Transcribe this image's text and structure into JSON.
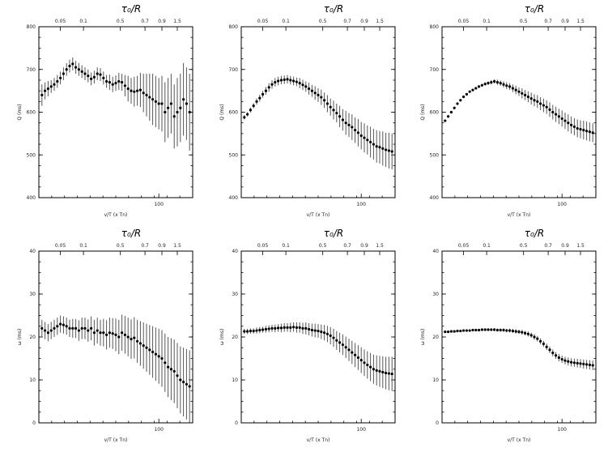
{
  "chart_data": [
    {
      "type": "scatter",
      "top_label": "τ₀/R",
      "top_ticks": [
        "0.05",
        "0.1",
        "0.5",
        "0.7",
        "0.9",
        "1.5"
      ],
      "xlabel": "v/T (x Tn)",
      "x_ticks": [
        "100"
      ],
      "ylabel": "Q (ms)",
      "ylim": [
        400,
        800
      ],
      "y_ticks": [
        "400",
        "500",
        "600",
        "700",
        "800"
      ],
      "grid": false,
      "series": [
        {
          "x": [
            0.02,
            0.04,
            0.06,
            0.08,
            0.1,
            0.12,
            0.14,
            0.16,
            0.18,
            0.2,
            0.22,
            0.24,
            0.26,
            0.28,
            0.3,
            0.32,
            0.34,
            0.36,
            0.38,
            0.4,
            0.42,
            0.44,
            0.46,
            0.48,
            0.5,
            0.52,
            0.54,
            0.56,
            0.58,
            0.6,
            0.62,
            0.64,
            0.66,
            0.68,
            0.7,
            0.72,
            0.74,
            0.76,
            0.78,
            0.8,
            0.82,
            0.84,
            0.86,
            0.88,
            0.9,
            0.92,
            0.94,
            0.96,
            0.98
          ],
          "y": [
            640,
            650,
            655,
            660,
            665,
            672,
            680,
            690,
            700,
            708,
            713,
            705,
            700,
            695,
            690,
            685,
            678,
            682,
            690,
            688,
            680,
            672,
            670,
            665,
            668,
            672,
            670,
            662,
            655,
            650,
            648,
            650,
            652,
            645,
            640,
            635,
            630,
            625,
            620,
            620,
            600,
            610,
            620,
            590,
            600,
            610,
            630,
            620,
            600
          ],
          "err": [
            25,
            20,
            18,
            15,
            15,
            15,
            15,
            15,
            15,
            15,
            15,
            15,
            15,
            15,
            15,
            15,
            15,
            15,
            15,
            15,
            15,
            15,
            18,
            18,
            18,
            20,
            20,
            25,
            30,
            30,
            35,
            35,
            40,
            45,
            50,
            55,
            60,
            60,
            60,
            65,
            70,
            70,
            70,
            75,
            80,
            80,
            85,
            85,
            90
          ]
        }
      ]
    },
    {
      "type": "scatter",
      "top_label": "τ₀/R",
      "top_ticks": [
        "0.05",
        "0.1",
        "0.5",
        "0.7",
        "0.9",
        "1.5"
      ],
      "xlabel": "v/T (x Tn)",
      "x_ticks": [
        "100"
      ],
      "ylabel": "Q (ms)",
      "ylim": [
        400,
        800
      ],
      "y_ticks": [
        "400",
        "500",
        "600",
        "700",
        "800"
      ],
      "grid": false,
      "series": [
        {
          "x": [
            0.02,
            0.04,
            0.06,
            0.08,
            0.1,
            0.12,
            0.14,
            0.16,
            0.18,
            0.2,
            0.22,
            0.24,
            0.26,
            0.28,
            0.3,
            0.32,
            0.34,
            0.36,
            0.38,
            0.4,
            0.42,
            0.44,
            0.46,
            0.48,
            0.5,
            0.52,
            0.54,
            0.56,
            0.58,
            0.6,
            0.62,
            0.64,
            0.66,
            0.68,
            0.7,
            0.72,
            0.74,
            0.76,
            0.78,
            0.8,
            0.82,
            0.84,
            0.86,
            0.88,
            0.9,
            0.92,
            0.94,
            0.96,
            0.98
          ],
          "y": [
            588,
            595,
            605,
            615,
            625,
            633,
            642,
            650,
            658,
            665,
            670,
            673,
            675,
            676,
            677,
            675,
            673,
            671,
            668,
            664,
            660,
            655,
            650,
            645,
            640,
            635,
            628,
            620,
            612,
            605,
            598,
            590,
            582,
            575,
            570,
            565,
            558,
            552,
            545,
            540,
            535,
            530,
            525,
            520,
            518,
            515,
            512,
            510,
            508
          ],
          "err": [
            5,
            5,
            6,
            6,
            7,
            8,
            8,
            9,
            10,
            10,
            10,
            10,
            10,
            10,
            10,
            10,
            10,
            10,
            12,
            12,
            12,
            14,
            14,
            16,
            16,
            18,
            18,
            20,
            20,
            22,
            22,
            25,
            25,
            28,
            28,
            30,
            30,
            32,
            32,
            34,
            34,
            36,
            36,
            38,
            38,
            40,
            40,
            42,
            42
          ]
        }
      ]
    },
    {
      "type": "scatter",
      "top_label": "τ₀/R",
      "top_ticks": [
        "0.05",
        "0.1",
        "0.5",
        "0.7",
        "0.9",
        "1.5"
      ],
      "xlabel": "v/T (x Tn)",
      "x_ticks": [
        "100"
      ],
      "ylabel": "Q (ms)",
      "ylim": [
        400,
        800
      ],
      "y_ticks": [
        "400",
        "500",
        "600",
        "700",
        "800"
      ],
      "grid": false,
      "series": [
        {
          "x": [
            0.02,
            0.04,
            0.06,
            0.08,
            0.1,
            0.12,
            0.14,
            0.16,
            0.18,
            0.2,
            0.22,
            0.24,
            0.26,
            0.28,
            0.3,
            0.32,
            0.34,
            0.36,
            0.38,
            0.4,
            0.42,
            0.44,
            0.46,
            0.48,
            0.5,
            0.52,
            0.54,
            0.56,
            0.58,
            0.6,
            0.62,
            0.64,
            0.66,
            0.68,
            0.7,
            0.72,
            0.74,
            0.76,
            0.78,
            0.8,
            0.82,
            0.84,
            0.86,
            0.88,
            0.9,
            0.92,
            0.94,
            0.96,
            0.98
          ],
          "y": [
            580,
            590,
            600,
            610,
            620,
            628,
            636,
            642,
            648,
            652,
            656,
            660,
            663,
            666,
            668,
            670,
            672,
            670,
            668,
            665,
            662,
            660,
            656,
            652,
            648,
            644,
            640,
            636,
            632,
            628,
            625,
            620,
            616,
            612,
            606,
            600,
            595,
            590,
            585,
            580,
            575,
            570,
            566,
            562,
            560,
            558,
            556,
            554,
            552
          ],
          "err": [
            1,
            1,
            1,
            2,
            2,
            2,
            2,
            2,
            2,
            3,
            3,
            3,
            3,
            4,
            4,
            5,
            5,
            6,
            6,
            7,
            8,
            8,
            9,
            10,
            10,
            12,
            12,
            13,
            14,
            14,
            15,
            15,
            16,
            16,
            17,
            17,
            18,
            18,
            19,
            19,
            20,
            20,
            20,
            21,
            21,
            22,
            22,
            22,
            22
          ]
        }
      ]
    },
    {
      "type": "scatter",
      "top_label": "τ₀/R",
      "top_ticks": [
        "0.05",
        "0.1",
        "0.5",
        "0.7",
        "0.9",
        "1.5"
      ],
      "xlabel": "v/T (x Tn)",
      "x_ticks": [
        "100"
      ],
      "ylabel": "ω (ms)",
      "ylim": [
        0,
        40
      ],
      "y_ticks": [
        "0",
        "10",
        "20",
        "30",
        "40"
      ],
      "grid": false,
      "series": [
        {
          "x": [
            0.02,
            0.04,
            0.06,
            0.08,
            0.1,
            0.12,
            0.14,
            0.16,
            0.18,
            0.2,
            0.22,
            0.24,
            0.26,
            0.28,
            0.3,
            0.32,
            0.34,
            0.36,
            0.38,
            0.4,
            0.42,
            0.44,
            0.46,
            0.48,
            0.5,
            0.52,
            0.54,
            0.56,
            0.58,
            0.6,
            0.62,
            0.64,
            0.66,
            0.68,
            0.7,
            0.72,
            0.74,
            0.76,
            0.78,
            0.8,
            0.82,
            0.84,
            0.86,
            0.88,
            0.9,
            0.92,
            0.94,
            0.96,
            0.98
          ],
          "y": [
            22,
            21.5,
            21,
            21.5,
            22,
            22.5,
            23,
            22.8,
            22.5,
            22,
            22,
            22,
            21.5,
            22,
            22,
            21.5,
            22,
            21,
            21.5,
            21,
            21,
            20.5,
            21,
            20.8,
            20.5,
            20,
            21,
            20.5,
            20,
            19.5,
            19.8,
            19,
            18.5,
            18,
            17.5,
            17,
            16.5,
            16,
            15.5,
            15,
            14,
            13,
            12.5,
            12,
            11,
            10,
            9.5,
            9,
            8.5
          ],
          "err": [
            2,
            2,
            2,
            2,
            2,
            2,
            2,
            2,
            2,
            2,
            2.2,
            2.2,
            2.4,
            2.5,
            2.5,
            2.6,
            2.8,
            3,
            3,
            3,
            3.2,
            3.4,
            3.5,
            3.6,
            3.8,
            4,
            4.2,
            4.4,
            4.5,
            4.6,
            4.8,
            5,
            5.2,
            5.4,
            5.6,
            5.8,
            6,
            6.2,
            6.4,
            6.6,
            6.8,
            7,
            7.2,
            7.4,
            7.6,
            7.8,
            8,
            8.2,
            8.4
          ]
        }
      ]
    },
    {
      "type": "scatter",
      "top_label": "τ₀/R",
      "top_ticks": [
        "0.05",
        "0.1",
        "0.5",
        "0.7",
        "0.9",
        "1.5"
      ],
      "xlabel": "v/T (x Tn)",
      "x_ticks": [
        "100"
      ],
      "ylabel": "ω (ms)",
      "ylim": [
        0,
        40
      ],
      "y_ticks": [
        "0",
        "10",
        "20",
        "30",
        "40"
      ],
      "grid": false,
      "series": [
        {
          "x": [
            0.02,
            0.04,
            0.06,
            0.08,
            0.1,
            0.12,
            0.14,
            0.16,
            0.18,
            0.2,
            0.22,
            0.24,
            0.26,
            0.28,
            0.3,
            0.32,
            0.34,
            0.36,
            0.38,
            0.4,
            0.42,
            0.44,
            0.46,
            0.48,
            0.5,
            0.52,
            0.54,
            0.56,
            0.58,
            0.6,
            0.62,
            0.64,
            0.66,
            0.68,
            0.7,
            0.72,
            0.74,
            0.76,
            0.78,
            0.8,
            0.82,
            0.84,
            0.86,
            0.88,
            0.9,
            0.92,
            0.94,
            0.96,
            0.98
          ],
          "y": [
            21.3,
            21.3,
            21.4,
            21.4,
            21.5,
            21.6,
            21.7,
            21.8,
            21.9,
            22,
            22,
            22.1,
            22.1,
            22.2,
            22.2,
            22.2,
            22.3,
            22.2,
            22.2,
            22,
            22,
            21.8,
            21.6,
            21.5,
            21.4,
            21.2,
            21,
            20.7,
            20.3,
            19.8,
            19.2,
            18.7,
            18.2,
            17.6,
            17,
            16.4,
            15.8,
            15.2,
            14.6,
            14,
            13.5,
            13,
            12.5,
            12.2,
            12,
            11.8,
            11.6,
            11.5,
            11.4
          ],
          "err": [
            0.6,
            0.6,
            0.6,
            0.6,
            0.7,
            0.7,
            0.7,
            0.8,
            0.8,
            0.8,
            0.9,
            0.9,
            1,
            1,
            1,
            1.1,
            1.1,
            1.2,
            1.2,
            1.3,
            1.4,
            1.4,
            1.5,
            1.6,
            1.6,
            1.7,
            1.8,
            1.9,
            2,
            2.1,
            2.2,
            2.3,
            2.4,
            2.5,
            2.6,
            2.7,
            2.8,
            2.9,
            3,
            3.1,
            3.2,
            3.3,
            3.4,
            3.5,
            3.6,
            3.7,
            3.8,
            3.9,
            4
          ]
        }
      ]
    },
    {
      "type": "scatter",
      "top_label": "τ₀/R",
      "top_ticks": [
        "0.05",
        "0.1",
        "0.5",
        "0.7",
        "0.9",
        "1.5"
      ],
      "xlabel": "v/T (x Tn)",
      "x_ticks": [
        "100"
      ],
      "ylabel": "ω (ms)",
      "ylim": [
        0,
        40
      ],
      "y_ticks": [
        "0",
        "10",
        "20",
        "30",
        "40"
      ],
      "grid": false,
      "series": [
        {
          "x": [
            0.02,
            0.04,
            0.06,
            0.08,
            0.1,
            0.12,
            0.14,
            0.16,
            0.18,
            0.2,
            0.22,
            0.24,
            0.26,
            0.28,
            0.3,
            0.32,
            0.34,
            0.36,
            0.38,
            0.4,
            0.42,
            0.44,
            0.46,
            0.48,
            0.5,
            0.52,
            0.54,
            0.56,
            0.58,
            0.6,
            0.62,
            0.64,
            0.66,
            0.68,
            0.7,
            0.72,
            0.74,
            0.76,
            0.78,
            0.8,
            0.82,
            0.84,
            0.86,
            0.88,
            0.9,
            0.92,
            0.94,
            0.96,
            0.98
          ],
          "y": [
            21.2,
            21.2,
            21.3,
            21.3,
            21.4,
            21.4,
            21.5,
            21.5,
            21.5,
            21.6,
            21.6,
            21.6,
            21.7,
            21.7,
            21.7,
            21.7,
            21.7,
            21.6,
            21.6,
            21.6,
            21.5,
            21.5,
            21.4,
            21.3,
            21.2,
            21.1,
            20.9,
            20.7,
            20.4,
            20,
            19.6,
            19,
            18.4,
            17.7,
            17,
            16.3,
            15.7,
            15.2,
            14.8,
            14.5,
            14.3,
            14.1,
            14,
            13.9,
            13.8,
            13.7,
            13.6,
            13.5,
            13.4
          ],
          "err": [
            0.15,
            0.15,
            0.15,
            0.15,
            0.2,
            0.2,
            0.2,
            0.2,
            0.2,
            0.25,
            0.25,
            0.25,
            0.3,
            0.3,
            0.3,
            0.3,
            0.35,
            0.35,
            0.35,
            0.4,
            0.4,
            0.45,
            0.45,
            0.5,
            0.5,
            0.55,
            0.55,
            0.6,
            0.6,
            0.65,
            0.65,
            0.7,
            0.7,
            0.75,
            0.75,
            0.8,
            0.8,
            0.85,
            0.85,
            0.9,
            0.9,
            0.95,
            0.95,
            1,
            1,
            1.05,
            1.05,
            1.1,
            1.1
          ]
        }
      ]
    }
  ]
}
